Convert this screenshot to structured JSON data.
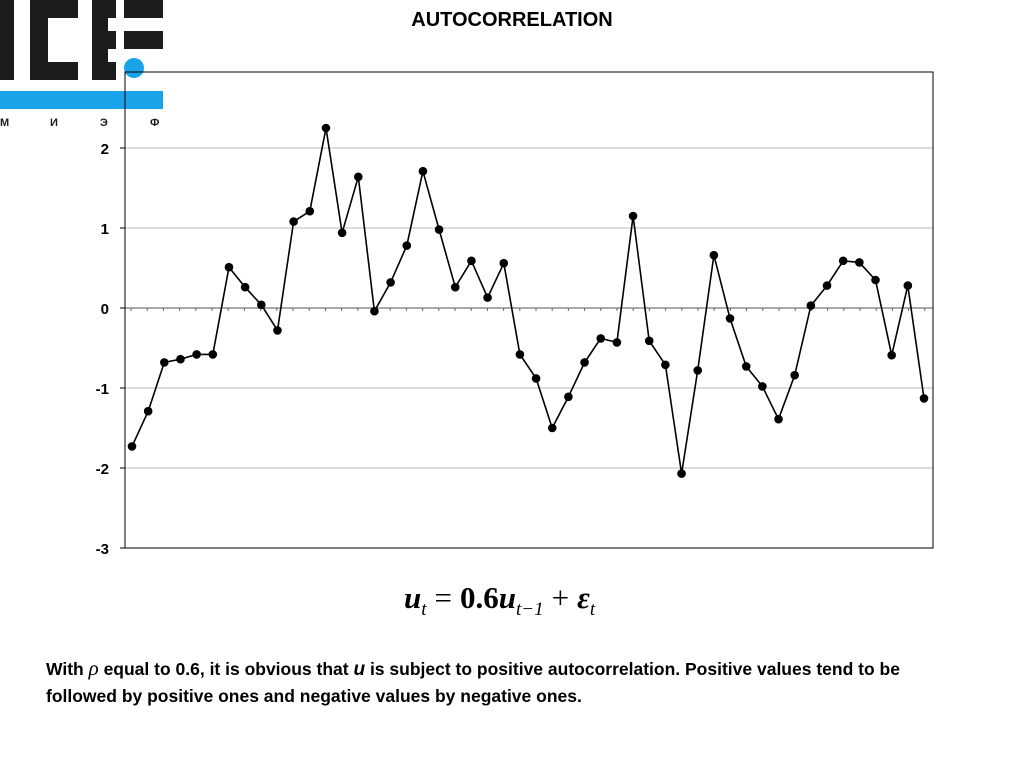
{
  "logo": {
    "letters": "ICEF",
    "subtitle_letters": [
      "М",
      "И",
      "Э",
      "Ф"
    ],
    "colors": {
      "dark": "#1c1c1c",
      "accent": "#1aa3e8"
    }
  },
  "chart_data": {
    "type": "line",
    "title": "AUTOCORRELATION",
    "xlabel": "",
    "ylabel": "",
    "ylim": [
      -3,
      2.95
    ],
    "yticks": [
      2,
      1,
      0,
      -1,
      -2,
      -3
    ],
    "ytick_labels": [
      "2",
      "1",
      "0",
      "-1",
      "-2",
      "-3"
    ],
    "grid": true,
    "legend": "none",
    "series": [
      {
        "color": "#000000",
        "marker": "circle",
        "values": [
          -1.73,
          -1.29,
          -0.68,
          -0.64,
          -0.58,
          -0.58,
          0.51,
          0.26,
          0.04,
          -0.28,
          1.08,
          1.21,
          2.25,
          0.94,
          1.64,
          -0.04,
          0.32,
          0.78,
          1.71,
          0.98,
          0.26,
          0.59,
          0.13,
          0.56,
          -0.58,
          -0.88,
          -1.5,
          -1.11,
          -0.68,
          -0.38,
          -0.43,
          1.15,
          -0.41,
          -0.71,
          -2.07,
          -0.78,
          0.66,
          -0.13,
          -0.73,
          -0.98,
          -1.39,
          -0.84,
          0.03,
          0.28,
          0.59,
          0.57,
          0.35,
          -0.59,
          0.28,
          -1.13
        ]
      }
    ]
  },
  "formula": {
    "lhs_var": "u",
    "lhs_sub": "t",
    "equals": "=",
    "coef": "0.6",
    "rhs_var": "u",
    "rhs_sub": "t−1",
    "plus": "+",
    "err_var": "ε",
    "err_sub": "t"
  },
  "caption": {
    "part1": "With ",
    "rho": "ρ",
    "part2": " equal to 0.6, it is obvious that ",
    "u": "u",
    "part3": " is subject to positive autocorrelation.  Positive values tend to be followed by positive ones and negative values by negative ones."
  }
}
